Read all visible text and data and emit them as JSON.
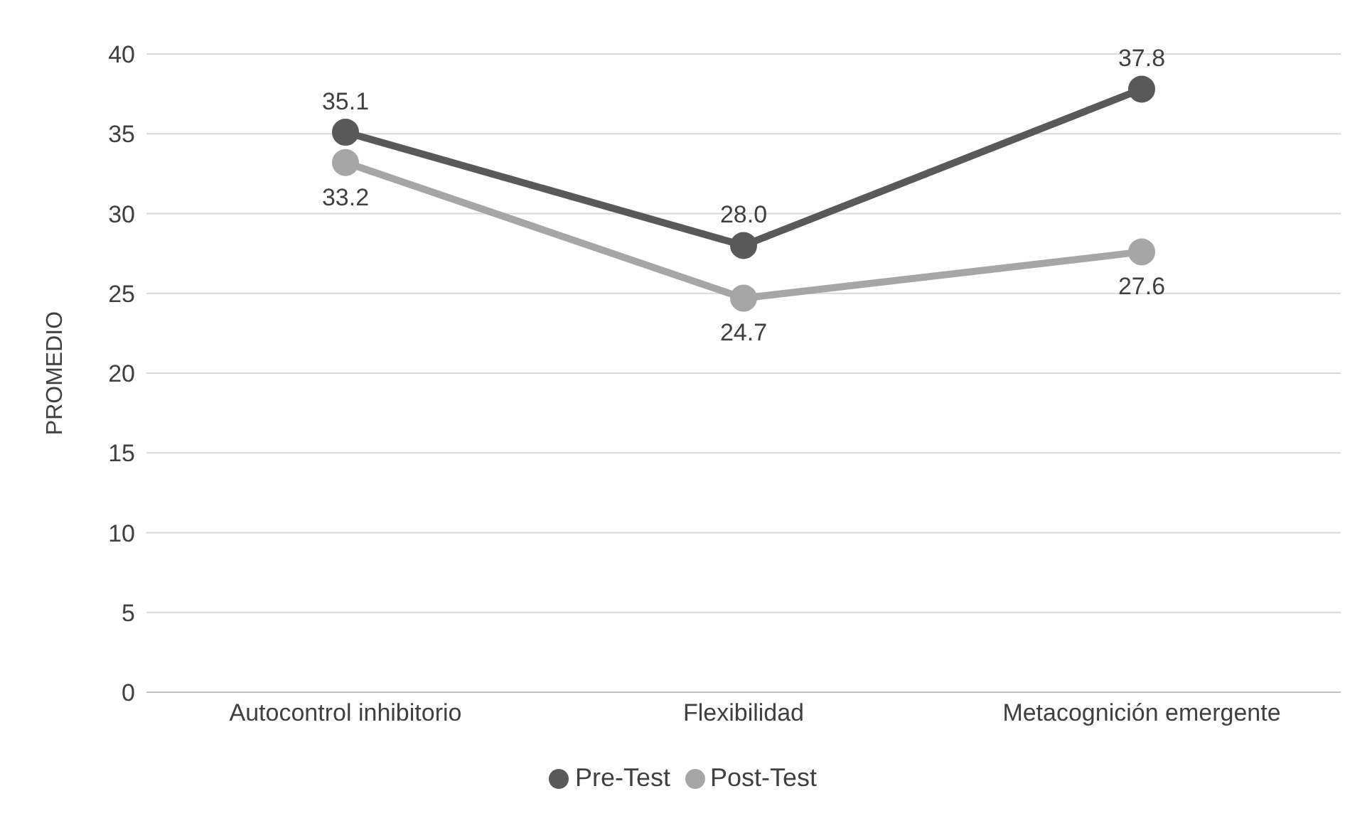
{
  "chart_data": {
    "type": "line",
    "ylabel": "PROMEDIO",
    "categories": [
      "Autocontrol inhibitorio",
      "Flexibilidad",
      "Metacognición emergente"
    ],
    "series": [
      {
        "name": "Pre-Test",
        "color": "#595959",
        "values": [
          35.1,
          28.0,
          37.8
        ],
        "value_labels": [
          "35.1",
          "28.0",
          "37.8"
        ]
      },
      {
        "name": "Post-Test",
        "color": "#a6a6a6",
        "values": [
          33.2,
          24.7,
          27.6
        ],
        "value_labels": [
          "33.2",
          "24.7",
          "27.6"
        ]
      }
    ],
    "ylim": [
      0,
      40
    ],
    "yticks": [
      0,
      5,
      10,
      15,
      20,
      25,
      30,
      35,
      40
    ],
    "grid": "y",
    "legend": "bottom",
    "marker": "circle",
    "line_style": "solid"
  }
}
